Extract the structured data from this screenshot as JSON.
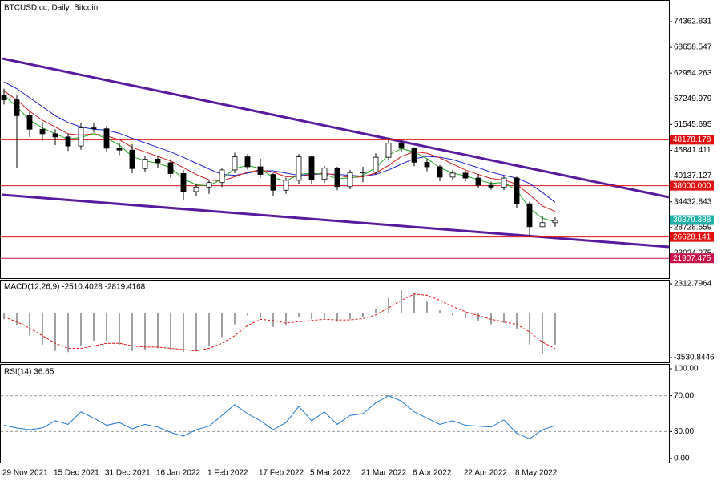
{
  "chart_data": [
    {
      "type": "candlestick",
      "title": "BTCUSD.cc, Daily:  Bitcoin",
      "categories": [
        "29 Nov 2021",
        null,
        null,
        null,
        "15 Dec 2021",
        null,
        null,
        null,
        "31 Dec 2021",
        null,
        null,
        null,
        "16 Jan 2022",
        null,
        null,
        null,
        "1 Feb 2022",
        null,
        null,
        null,
        "17 Feb 2022",
        null,
        null,
        null,
        "5 Mar 2022",
        null,
        null,
        null,
        "21 Mar 2022",
        null,
        null,
        null,
        "6 Apr 2022",
        null,
        null,
        null,
        "22 Apr 2022",
        null,
        null,
        null,
        "8 May 2022",
        null,
        null,
        null
      ],
      "open": [
        58000,
        57000,
        53500,
        50500,
        49500,
        48800,
        46800,
        50800,
        50600,
        46300,
        45900,
        41800,
        43900,
        43100,
        40700,
        36700,
        37700,
        38700,
        41500,
        44400,
        42200,
        40500,
        37000,
        39200,
        44400,
        39400,
        41900,
        37800,
        40900,
        41000,
        44300,
        47400,
        46300,
        43200,
        42200,
        39900,
        40800,
        39700,
        38100,
        37700,
        39700,
        34000,
        28900,
        29800
      ],
      "high": [
        59500,
        58000,
        54500,
        51800,
        50500,
        49500,
        51800,
        52000,
        51200,
        47500,
        47200,
        44500,
        44500,
        43900,
        41500,
        38500,
        39200,
        41800,
        45300,
        45000,
        44000,
        40800,
        39800,
        45000,
        44700,
        42400,
        42200,
        41500,
        42200,
        45200,
        48200,
        48100,
        46500,
        43900,
        42600,
        41500,
        41300,
        40600,
        38900,
        40100,
        40000,
        34500,
        31200,
        31000
      ],
      "low": [
        56000,
        42000,
        48800,
        48000,
        47000,
        45700,
        46000,
        49800,
        45600,
        44800,
        40800,
        41000,
        42000,
        39800,
        34800,
        35800,
        36200,
        37700,
        40800,
        41600,
        39800,
        35800,
        36200,
        38400,
        38400,
        38600,
        37000,
        37200,
        38800,
        40500,
        43800,
        45400,
        42300,
        41200,
        39000,
        39200,
        39000,
        37500,
        37100,
        37000,
        33000,
        26700,
        28800,
        28900
      ],
      "close": [
        57000,
        53500,
        50500,
        49500,
        48800,
        46800,
        50800,
        50600,
        46300,
        45900,
        41800,
        43900,
        43100,
        40700,
        36700,
        37700,
        38700,
        41500,
        44400,
        42200,
        40500,
        37000,
        39200,
        44400,
        39400,
        41900,
        37800,
        40900,
        41000,
        44300,
        47400,
        46300,
        43200,
        42200,
        39900,
        40800,
        39700,
        38100,
        37700,
        39700,
        34000,
        28900,
        29800,
        30300
      ],
      "series": [
        {
          "color": "#1e1ec8",
          "values": [
            61000,
            59500,
            57500,
            55500,
            53500,
            52000,
            51000,
            50500,
            50300,
            49600,
            48500,
            47500,
            46500,
            45500,
            44300,
            43000,
            41700,
            40500,
            40300,
            40800,
            41300,
            41300,
            40800,
            40300,
            40500,
            40600,
            40500,
            40300,
            40100,
            40500,
            41500,
            42800,
            44000,
            44500,
            44300,
            43800,
            42900,
            42000,
            41000,
            40300,
            39700,
            38500,
            36500,
            34300
          ]
        },
        {
          "color": "#d01e1e",
          "values": [
            59000,
            57000,
            54500,
            52500,
            51000,
            49500,
            49200,
            49500,
            49000,
            48200,
            46500,
            45500,
            44500,
            43500,
            42000,
            40500,
            39300,
            39000,
            40000,
            41000,
            41500,
            41000,
            40000,
            40000,
            40500,
            40800,
            40300,
            39800,
            40000,
            40800,
            42500,
            44500,
            45500,
            45200,
            44200,
            42800,
            41500,
            40500,
            39600,
            39300,
            38300,
            36000,
            33500,
            32300
          ]
        },
        {
          "color": "#20a820",
          "values": [
            58000,
            55500,
            52500,
            50800,
            49500,
            48300,
            48700,
            49500,
            48500,
            47000,
            44500,
            43500,
            43000,
            42000,
            39500,
            38200,
            38000,
            39500,
            41800,
            42500,
            41800,
            39800,
            39000,
            40500,
            40800,
            40500,
            39600,
            39700,
            40300,
            42000,
            44800,
            46200,
            45500,
            44000,
            42000,
            40800,
            40200,
            39300,
            38500,
            38700,
            37000,
            33000,
            30800,
            30000
          ]
        }
      ],
      "hlines": [
        {
          "value": 48178.178,
          "color": "#e01010"
        },
        {
          "value": {
            "value": 38000,
            "label": "38000.000"
          },
          "color": "#e01010"
        },
        {
          "value": 30379.388,
          "color": "#20b2aa"
        },
        {
          "value": 26628.141,
          "color": "#e01010"
        },
        {
          "value": 21907.475,
          "color": "#c8104a"
        }
      ],
      "ylim": [
        17500,
        78800
      ],
      "yticks": [
        74362.831,
        68658.547,
        62954.263,
        57249.979,
        51545.695,
        45841.411,
        40137.127,
        34432.843,
        28728.559,
        23024.275
      ]
    },
    {
      "type": "macd",
      "title": "MACD(12,26,9) -2510.4028 -2819.4168",
      "series": [
        {
          "color": "#a0a0a0",
          "values": [
            -500,
            -1000,
            -1800,
            -2500,
            -3000,
            -3100,
            -2600,
            -2200,
            -2200,
            -2500,
            -3000,
            -2900,
            -2800,
            -2900,
            -3100,
            -3000,
            -2600,
            -1900,
            -900,
            -200,
            -400,
            -1100,
            -1000,
            -300,
            -500,
            -400,
            -700,
            -500,
            -300,
            300,
            1200,
            1800,
            1600,
            900,
            200,
            -200,
            -400,
            -600,
            -900,
            -800,
            -1300,
            -2500,
            -3200,
            -2510.4028
          ]
        },
        {
          "color": "#e01010",
          "values": [
            -300,
            -700,
            -1200,
            -1800,
            -2400,
            -2800,
            -2800,
            -2600,
            -2400,
            -2400,
            -2600,
            -2700,
            -2700,
            -2800,
            -2900,
            -3000,
            -2800,
            -2400,
            -1800,
            -1000,
            -500,
            -600,
            -800,
            -700,
            -600,
            -500,
            -550,
            -550,
            -450,
            -150,
            400,
            1000,
            1500,
            1400,
            1000,
            500,
            100,
            -200,
            -500,
            -700,
            -900,
            -1500,
            -2300,
            -2819.4168
          ]
        }
      ],
      "ylim": [
        -3912,
        2566
      ],
      "yticks": [
        2312.7964,
        -3530.8446
      ]
    },
    {
      "type": "rsi",
      "title": "RSI(14) 36.65",
      "color": "#1e78d0",
      "values": [
        37,
        34,
        32,
        34,
        42,
        38,
        52,
        45,
        37,
        40,
        33,
        38,
        35,
        29,
        25,
        32,
        36,
        48,
        60,
        50,
        42,
        32,
        40,
        58,
        42,
        52,
        38,
        48,
        50,
        62,
        70,
        64,
        52,
        45,
        38,
        42,
        37,
        36,
        35,
        43,
        28,
        22,
        32,
        36.65
      ],
      "ylim": [
        -4.5,
        104.5
      ],
      "yticks": [
        {
          "value": 100,
          "label": "100.00"
        },
        {
          "value": 70,
          "label": "70.00"
        },
        {
          "value": 30,
          "label": "30.00"
        },
        {
          "value": 0,
          "label": "0.00"
        }
      ]
    }
  ]
}
